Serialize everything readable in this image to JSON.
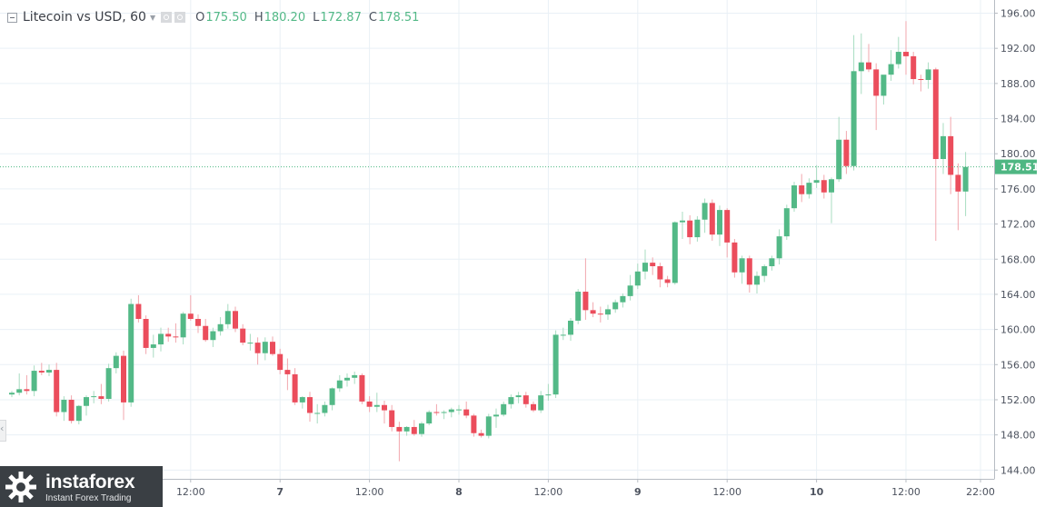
{
  "legend": {
    "title": "Litecoin vs USD, 60",
    "open_label": "O",
    "open": "175.50",
    "high_label": "H",
    "high": "180.20",
    "low_label": "L",
    "low": "172.87",
    "close_label": "C",
    "close": "178.51",
    "icons": [
      "collapse-icon",
      "chevron-down-icon",
      "settings-icon",
      "close-icon"
    ]
  },
  "branding": {
    "name": "instaforex",
    "tagline": "Instant Forex Trading"
  },
  "colors": {
    "up": "#53b987",
    "down": "#eb4d5c",
    "grid": "#e9f0f6",
    "price_line": "#4fb783",
    "axis_text": "#4c525e"
  },
  "chart_data": {
    "type": "candlestick",
    "symbol": "Litecoin vs USD",
    "interval": "60",
    "y_ticks": [
      "144.00",
      "148.00",
      "152.00",
      "156.00",
      "160.00",
      "164.00",
      "168.00",
      "172.00",
      "176.00",
      "180.00",
      "184.00",
      "188.00",
      "192.00",
      "196.00"
    ],
    "ylim": [
      143.0,
      197.5
    ],
    "x_ticks": [
      {
        "label": "12:00",
        "index": 24
      },
      {
        "label": "7",
        "index": 36
      },
      {
        "label": "12:00",
        "index": 48
      },
      {
        "label": "8",
        "index": 60
      },
      {
        "label": "12:00",
        "index": 72
      },
      {
        "label": "9",
        "index": 84
      },
      {
        "label": "12:00",
        "index": 96
      },
      {
        "label": "10",
        "index": 108
      },
      {
        "label": "12:00",
        "index": 120
      },
      {
        "label": "22:00",
        "index": 130
      }
    ],
    "last_price": "178.51",
    "grid": true,
    "candles": [
      [
        152.6,
        153.0,
        152.3,
        152.8
      ],
      [
        152.8,
        155.0,
        152.5,
        153.2
      ],
      [
        153.2,
        154.8,
        152.6,
        153.0
      ],
      [
        153.0,
        155.9,
        152.4,
        155.3
      ],
      [
        155.3,
        156.2,
        154.8,
        155.1
      ],
      [
        155.1,
        156.0,
        154.7,
        155.4
      ],
      [
        155.4,
        156.2,
        150.1,
        150.6
      ],
      [
        150.6,
        152.4,
        149.6,
        152.0
      ],
      [
        152.0,
        152.5,
        149.3,
        149.6
      ],
      [
        149.6,
        151.4,
        149.2,
        151.3
      ],
      [
        151.3,
        152.5,
        150.2,
        152.3
      ],
      [
        152.3,
        153.0,
        151.6,
        152.4
      ],
      [
        152.4,
        153.8,
        151.5,
        152.1
      ],
      [
        152.1,
        156.1,
        151.8,
        155.6
      ],
      [
        155.6,
        157.4,
        155.0,
        157.0
      ],
      [
        157.0,
        157.6,
        149.7,
        151.7
      ],
      [
        151.7,
        163.5,
        151.2,
        162.9
      ],
      [
        162.9,
        163.9,
        160.8,
        161.2
      ],
      [
        161.2,
        161.6,
        157.2,
        157.9
      ],
      [
        157.9,
        159.4,
        156.8,
        158.3
      ],
      [
        158.3,
        160.2,
        157.5,
        159.5
      ],
      [
        159.5,
        160.2,
        158.6,
        159.2
      ],
      [
        159.2,
        160.7,
        158.5,
        159.1
      ],
      [
        159.1,
        162.0,
        158.3,
        161.8
      ],
      [
        161.8,
        163.9,
        161.0,
        161.2
      ],
      [
        161.2,
        161.7,
        159.6,
        160.4
      ],
      [
        160.4,
        161.2,
        158.6,
        158.8
      ],
      [
        158.8,
        160.2,
        158.0,
        159.8
      ],
      [
        159.8,
        161.4,
        159.3,
        160.6
      ],
      [
        160.6,
        162.9,
        160.1,
        162.1
      ],
      [
        162.1,
        162.6,
        159.7,
        160.1
      ],
      [
        160.1,
        160.6,
        158.2,
        158.5
      ],
      [
        158.5,
        159.5,
        157.6,
        158.5
      ],
      [
        158.5,
        159.1,
        156.0,
        157.3
      ],
      [
        157.3,
        159.1,
        156.5,
        158.6
      ],
      [
        158.6,
        159.2,
        157.0,
        157.2
      ],
      [
        157.2,
        157.8,
        154.9,
        155.4
      ],
      [
        155.4,
        156.7,
        153.1,
        154.9
      ],
      [
        154.9,
        155.6,
        151.4,
        151.7
      ],
      [
        151.7,
        152.4,
        151.0,
        152.3
      ],
      [
        152.3,
        152.9,
        149.5,
        150.5
      ],
      [
        150.5,
        151.5,
        149.3,
        150.5
      ],
      [
        150.5,
        151.8,
        150.1,
        151.4
      ],
      [
        151.4,
        153.4,
        150.8,
        153.3
      ],
      [
        153.3,
        154.8,
        152.9,
        154.2
      ],
      [
        154.2,
        155.0,
        153.5,
        154.5
      ],
      [
        154.5,
        155.2,
        153.8,
        154.8
      ],
      [
        154.8,
        155.0,
        151.5,
        151.8
      ],
      [
        151.8,
        152.4,
        150.6,
        151.2
      ],
      [
        151.2,
        152.8,
        150.6,
        151.4
      ],
      [
        151.4,
        151.9,
        149.3,
        150.8
      ],
      [
        150.8,
        151.4,
        148.4,
        148.9
      ],
      [
        148.9,
        149.5,
        145.0,
        148.4
      ],
      [
        148.4,
        149.0,
        147.9,
        148.9
      ],
      [
        148.9,
        149.7,
        147.9,
        148.1
      ],
      [
        148.1,
        149.5,
        147.8,
        149.3
      ],
      [
        149.3,
        150.8,
        149.1,
        150.6
      ],
      [
        150.6,
        151.5,
        150.2,
        150.5
      ],
      [
        150.5,
        150.8,
        149.8,
        150.6
      ],
      [
        150.6,
        151.1,
        150.0,
        150.9
      ],
      [
        150.9,
        151.4,
        150.3,
        150.9
      ],
      [
        150.9,
        151.8,
        149.9,
        150.2
      ],
      [
        150.2,
        150.4,
        147.8,
        148.2
      ],
      [
        148.2,
        148.6,
        147.7,
        147.9
      ],
      [
        147.9,
        150.4,
        147.6,
        150.1
      ],
      [
        150.1,
        151.0,
        148.8,
        150.3
      ],
      [
        150.3,
        151.8,
        150.1,
        151.5
      ],
      [
        151.5,
        152.6,
        151.0,
        152.3
      ],
      [
        152.3,
        152.9,
        151.6,
        152.5
      ],
      [
        152.5,
        152.9,
        151.1,
        151.5
      ],
      [
        151.5,
        151.8,
        150.6,
        150.8
      ],
      [
        150.8,
        153.0,
        150.5,
        152.5
      ],
      [
        152.5,
        153.8,
        151.9,
        152.6
      ],
      [
        152.6,
        159.9,
        152.2,
        159.4
      ],
      [
        159.4,
        160.2,
        158.8,
        159.4
      ],
      [
        159.4,
        161.3,
        158.7,
        161.0
      ],
      [
        161.0,
        164.6,
        160.6,
        164.3
      ],
      [
        164.3,
        168.1,
        161.1,
        162.2
      ],
      [
        162.2,
        163.1,
        161.4,
        161.8
      ],
      [
        161.8,
        162.6,
        160.8,
        161.7
      ],
      [
        161.7,
        162.8,
        161.1,
        162.3
      ],
      [
        162.3,
        163.4,
        161.9,
        163.1
      ],
      [
        163.1,
        164.1,
        162.5,
        163.8
      ],
      [
        163.8,
        166.2,
        163.3,
        165.0
      ],
      [
        165.0,
        167.5,
        164.6,
        166.6
      ],
      [
        166.6,
        169.1,
        165.7,
        167.6
      ],
      [
        167.6,
        168.2,
        166.2,
        167.2
      ],
      [
        167.2,
        167.6,
        164.8,
        165.7
      ],
      [
        165.7,
        166.1,
        164.8,
        165.3
      ],
      [
        165.3,
        172.3,
        165.1,
        172.2
      ],
      [
        172.2,
        173.4,
        170.3,
        172.4
      ],
      [
        172.4,
        173.0,
        169.7,
        170.5
      ],
      [
        170.5,
        172.9,
        170.0,
        172.5
      ],
      [
        172.5,
        174.9,
        171.0,
        174.4
      ],
      [
        174.4,
        174.8,
        170.1,
        170.8
      ],
      [
        170.8,
        174.1,
        169.5,
        173.6
      ],
      [
        173.6,
        173.8,
        168.2,
        169.9
      ],
      [
        169.9,
        170.3,
        165.9,
        166.5
      ],
      [
        166.5,
        168.4,
        165.2,
        168.1
      ],
      [
        168.1,
        168.4,
        164.2,
        165.1
      ],
      [
        165.1,
        166.6,
        164.1,
        166.1
      ],
      [
        166.1,
        167.4,
        165.4,
        167.2
      ],
      [
        167.2,
        168.4,
        166.7,
        168.1
      ],
      [
        168.1,
        171.4,
        167.4,
        170.6
      ],
      [
        170.6,
        174.2,
        170.2,
        173.8
      ],
      [
        173.8,
        176.8,
        173.4,
        176.4
      ],
      [
        176.4,
        177.7,
        174.5,
        175.4
      ],
      [
        175.4,
        177.2,
        174.9,
        176.7
      ],
      [
        176.7,
        178.7,
        176.1,
        177.0
      ],
      [
        177.0,
        177.6,
        174.9,
        175.6
      ],
      [
        175.6,
        177.3,
        172.1,
        177.1
      ],
      [
        177.1,
        184.2,
        176.8,
        181.6
      ],
      [
        181.6,
        182.6,
        177.7,
        178.6
      ],
      [
        178.6,
        193.5,
        178.1,
        189.4
      ],
      [
        189.4,
        193.7,
        186.8,
        190.4
      ],
      [
        190.4,
        192.5,
        189.3,
        189.6
      ],
      [
        189.6,
        190.3,
        182.7,
        186.6
      ],
      [
        186.6,
        188.9,
        185.6,
        189.0
      ],
      [
        189.0,
        191.8,
        188.3,
        190.2
      ],
      [
        190.2,
        193.3,
        189.7,
        191.6
      ],
      [
        191.6,
        195.1,
        189.0,
        191.1
      ],
      [
        191.1,
        191.6,
        187.9,
        188.5
      ],
      [
        188.5,
        189.0,
        187.1,
        188.4
      ],
      [
        188.4,
        190.4,
        187.4,
        189.6
      ],
      [
        189.6,
        189.8,
        170.1,
        179.4
      ],
      [
        179.4,
        183.5,
        177.7,
        182.0
      ],
      [
        182.0,
        184.2,
        175.4,
        177.6
      ],
      [
        177.6,
        178.9,
        171.3,
        175.7
      ],
      [
        175.7,
        180.2,
        172.9,
        178.5
      ]
    ]
  }
}
